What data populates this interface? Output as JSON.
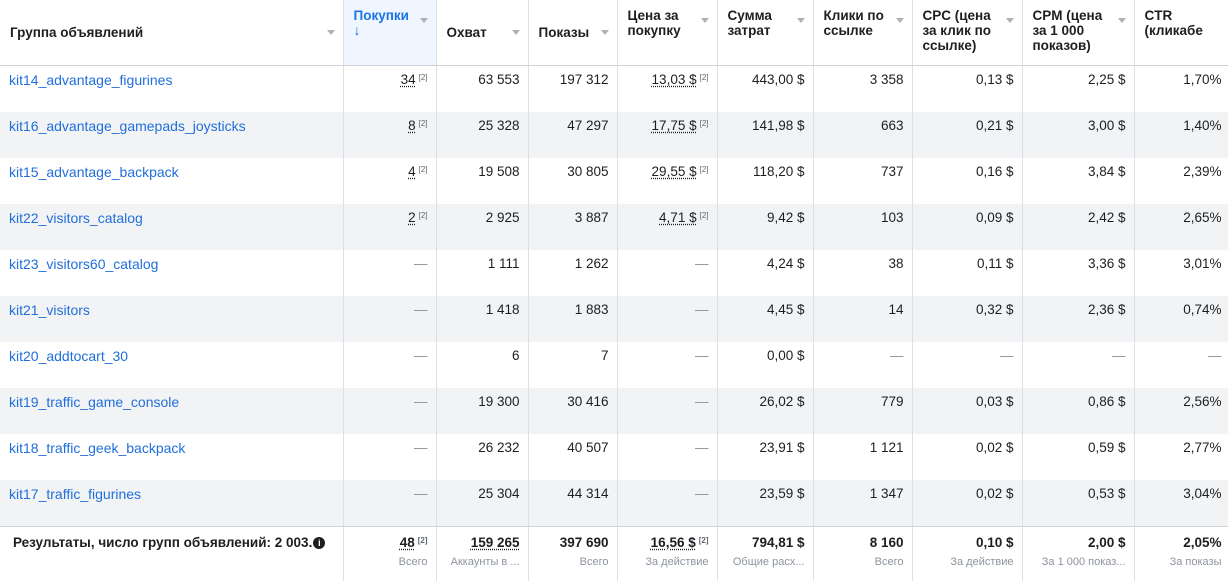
{
  "columns": [
    {
      "label": "Группа объявлений",
      "single": true
    },
    {
      "label": "Покупки",
      "arrow": "↓",
      "active": true,
      "single": false
    },
    {
      "label": "Охват",
      "single": true
    },
    {
      "label": "Показы",
      "single": true
    },
    {
      "label": "Цена за покупку",
      "single": false
    },
    {
      "label": "Сумма затрат",
      "single": false
    },
    {
      "label": "Клики по ссылке",
      "single": false
    },
    {
      "label": "CPC (цена за клик по ссылке)",
      "single": false
    },
    {
      "label": "CPM (цена за 1 000 показов)",
      "single": false
    },
    {
      "label": "CTR (кликабе",
      "single": false
    }
  ],
  "rows": [
    {
      "name": "kit14_advantage_figurines",
      "purchases": "34",
      "reach": "63 553",
      "impressions": "197 312",
      "cpp": "13,03 $",
      "spend": "443,00 $",
      "clicks": "3 358",
      "cpc": "0,13 $",
      "cpm": "2,25 $",
      "ctr": "1,70%"
    },
    {
      "name": "kit16_advantage_gamepads_joysticks",
      "purchases": "8",
      "reach": "25 328",
      "impressions": "47 297",
      "cpp": "17,75 $",
      "spend": "141,98 $",
      "clicks": "663",
      "cpc": "0,21 $",
      "cpm": "3,00 $",
      "ctr": "1,40%"
    },
    {
      "name": "kit15_advantage_backpack",
      "purchases": "4",
      "reach": "19 508",
      "impressions": "30 805",
      "cpp": "29,55 $",
      "spend": "118,20 $",
      "clicks": "737",
      "cpc": "0,16 $",
      "cpm": "3,84 $",
      "ctr": "2,39%"
    },
    {
      "name": "kit22_visitors_catalog",
      "purchases": "2",
      "reach": "2 925",
      "impressions": "3 887",
      "cpp": "4,71 $",
      "spend": "9,42 $",
      "clicks": "103",
      "cpc": "0,09 $",
      "cpm": "2,42 $",
      "ctr": "2,65%"
    },
    {
      "name": "kit23_visitors60_catalog",
      "purchases": "—",
      "reach": "1 111",
      "impressions": "1 262",
      "cpp": "—",
      "spend": "4,24 $",
      "clicks": "38",
      "cpc": "0,11 $",
      "cpm": "3,36 $",
      "ctr": "3,01%"
    },
    {
      "name": "kit21_visitors",
      "purchases": "—",
      "reach": "1 418",
      "impressions": "1 883",
      "cpp": "—",
      "spend": "4,45 $",
      "clicks": "14",
      "cpc": "0,32 $",
      "cpm": "2,36 $",
      "ctr": "0,74%"
    },
    {
      "name": "kit20_addtocart_30",
      "purchases": "—",
      "reach": "6",
      "impressions": "7",
      "cpp": "—",
      "spend": "0,00 $",
      "clicks": "—",
      "cpc": "—",
      "cpm": "—",
      "ctr": "—"
    },
    {
      "name": "kit19_traffic_game_console",
      "purchases": "—",
      "reach": "19 300",
      "impressions": "30 416",
      "cpp": "—",
      "spend": "26,02 $",
      "clicks": "779",
      "cpc": "0,03 $",
      "cpm": "0,86 $",
      "ctr": "2,56%"
    },
    {
      "name": "kit18_traffic_geek_backpack",
      "purchases": "—",
      "reach": "26 232",
      "impressions": "40 507",
      "cpp": "—",
      "spend": "23,91 $",
      "clicks": "1 121",
      "cpc": "0,02 $",
      "cpm": "0,59 $",
      "ctr": "2,77%"
    },
    {
      "name": "kit17_traffic_figurines",
      "purchases": "—",
      "reach": "25 304",
      "impressions": "44 314",
      "cpp": "—",
      "spend": "23,59 $",
      "clicks": "1 347",
      "cpc": "0,02 $",
      "cpm": "0,53 $",
      "ctr": "3,04%"
    }
  ],
  "note_marker": "[2]",
  "totals": {
    "label": "Результаты, число групп объявлений: 2 003.",
    "info_icon": "info-icon",
    "cells": [
      {
        "value": "48",
        "sub": "Всего",
        "underline": true,
        "note": true
      },
      {
        "value": "159 265",
        "sub": "Аккаунты в ...",
        "underline": true,
        "note": false
      },
      {
        "value": "397 690",
        "sub": "Всего",
        "underline": false,
        "note": false
      },
      {
        "value": "16,56 $",
        "sub": "За действие",
        "underline": true,
        "note": true
      },
      {
        "value": "794,81 $",
        "sub": "Общие расх...",
        "underline": false,
        "note": false
      },
      {
        "value": "8 160",
        "sub": "Всего",
        "underline": false,
        "note": false
      },
      {
        "value": "0,10 $",
        "sub": "За действие",
        "underline": false,
        "note": false
      },
      {
        "value": "2,00 $",
        "sub": "За 1 000 показ...",
        "underline": false,
        "note": false
      },
      {
        "value": "2,05%",
        "sub": "За показы",
        "underline": false,
        "note": false
      }
    ]
  },
  "colors": {
    "link": "#216fdb",
    "active_header": "#1b74e4",
    "row_alt": "#f2f3f5",
    "border": "#dddfe2"
  }
}
